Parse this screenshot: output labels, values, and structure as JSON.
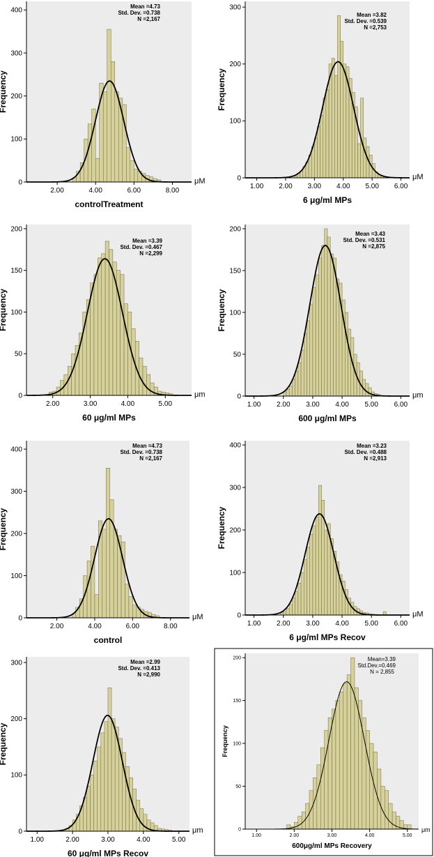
{
  "figure": {
    "style": {
      "bar_fill": "#d6d09b",
      "bar_stroke": "#6f6a40",
      "plot_bg": "#ececec",
      "curve": "#000000",
      "axis": "#000000"
    }
  },
  "chart_data": [
    {
      "type": "bar",
      "title": "controlTreatment",
      "xlabel": "controlTreatment",
      "ylabel": "Frequency",
      "unit": "μM",
      "xlim": [
        0.4,
        9.0
      ],
      "ylim": [
        0,
        420
      ],
      "x_ticks": [
        "2.00",
        "4.00",
        "6.00",
        "8.00"
      ],
      "x_tick_values": [
        2,
        4,
        6,
        8
      ],
      "y_ticks": [
        "0",
        "100",
        "200",
        "300",
        "400"
      ],
      "y_tick_values": [
        0,
        100,
        200,
        300,
        400
      ],
      "stats": {
        "mean_label": "Mean =4.73",
        "sd_label": "Std. Dev. =0.738",
        "n_label": "N =2,167"
      },
      "bin_width": 0.2,
      "bins_start": [
        2.8,
        3.0,
        3.2,
        3.4,
        3.6,
        3.8,
        4.0,
        4.2,
        4.4,
        4.6,
        4.8,
        5.0,
        5.2,
        5.4,
        5.6,
        5.8,
        6.0,
        6.2,
        6.4,
        6.6,
        6.8,
        7.0,
        7.2
      ],
      "values": [
        10,
        25,
        45,
        100,
        135,
        170,
        55,
        230,
        210,
        355,
        280,
        210,
        195,
        180,
        80,
        50,
        30,
        25,
        20,
        15,
        12,
        8,
        5
      ],
      "curve": {
        "mean": 4.73,
        "sd": 0.738,
        "peak": 235
      }
    },
    {
      "type": "bar",
      "title": "6 μg/ml MPs",
      "xlabel": "6 μg/ml MPs",
      "ylabel": "Frequency",
      "unit": "μM",
      "xlim": [
        0.6,
        6.3
      ],
      "ylim": [
        0,
        310
      ],
      "x_ticks": [
        "1.00",
        "2.00",
        "3.00",
        "4.00",
        "5.00",
        "6.00"
      ],
      "x_tick_values": [
        1,
        2,
        3,
        4,
        5,
        6
      ],
      "y_ticks": [
        "0",
        "100",
        "200",
        "300"
      ],
      "y_tick_values": [
        0,
        100,
        200,
        300
      ],
      "stats": {
        "mean_label": "Mean =3.82",
        "sd_label": "Std. Dev. =0.539",
        "n_label": "N =2,753"
      },
      "bin_width": 0.1,
      "bins_start": [
        2.3,
        2.4,
        2.5,
        2.6,
        2.7,
        2.8,
        2.9,
        3.0,
        3.1,
        3.2,
        3.3,
        3.4,
        3.5,
        3.6,
        3.7,
        3.8,
        3.9,
        4.0,
        4.1,
        4.2,
        4.3,
        4.4,
        4.5,
        4.6,
        4.7,
        4.8,
        4.9,
        5.0,
        5.1,
        5.2,
        5.3
      ],
      "values": [
        3,
        8,
        12,
        20,
        28,
        40,
        55,
        70,
        90,
        110,
        140,
        155,
        200,
        210,
        180,
        285,
        240,
        200,
        195,
        175,
        150,
        125,
        60,
        140,
        70,
        55,
        40,
        25,
        10,
        5,
        3
      ],
      "curve": {
        "mean": 3.82,
        "sd": 0.539,
        "peak": 204
      }
    },
    {
      "type": "bar",
      "title": "60 μg/ml MPs",
      "xlabel": "60 μg/ml MPs",
      "ylabel": "Frequency",
      "unit": "μm",
      "xlim": [
        1.3,
        5.7
      ],
      "ylim": [
        0,
        205
      ],
      "x_ticks": [
        "2.00",
        "3.00",
        "4.00",
        "5.00"
      ],
      "x_tick_values": [
        2,
        3,
        4,
        5
      ],
      "y_ticks": [
        "0",
        "50",
        "100",
        "150",
        "200"
      ],
      "y_tick_values": [
        0,
        50,
        100,
        150,
        200
      ],
      "stats": {
        "mean_label": "Mean =3.39",
        "sd_label": "Std. Dev. =0.467",
        "n_label": "N =2,299"
      },
      "bin_width": 0.1,
      "bins_start": [
        1.9,
        2.0,
        2.1,
        2.2,
        2.3,
        2.4,
        2.5,
        2.6,
        2.7,
        2.8,
        2.9,
        3.0,
        3.1,
        3.2,
        3.3,
        3.4,
        3.5,
        3.6,
        3.7,
        3.8,
        3.9,
        4.0,
        4.1,
        4.2,
        4.3,
        4.4,
        4.5,
        4.6,
        4.7,
        4.8,
        4.9,
        5.0,
        5.1
      ],
      "values": [
        4,
        5,
        10,
        18,
        25,
        35,
        50,
        60,
        75,
        100,
        115,
        135,
        145,
        165,
        170,
        185,
        175,
        160,
        150,
        145,
        110,
        100,
        80,
        65,
        45,
        35,
        25,
        15,
        10,
        5,
        4,
        3,
        2
      ],
      "curve": {
        "mean": 3.39,
        "sd": 0.467,
        "peak": 164
      }
    },
    {
      "type": "bar",
      "title": "600 μg/ml MPs",
      "xlabel": "600 μg/ml MPs",
      "ylabel": "Frequency",
      "unit": "μm",
      "xlim": [
        0.7,
        6.3
      ],
      "ylim": [
        0,
        205
      ],
      "x_ticks": [
        "1.00",
        "2.00",
        "3.00",
        "4.00",
        "5.00",
        "6.00"
      ],
      "x_tick_values": [
        1,
        2,
        3,
        4,
        5,
        6
      ],
      "y_ticks": [
        "0",
        "50",
        "100",
        "150",
        "200"
      ],
      "y_tick_values": [
        0,
        50,
        100,
        150,
        200
      ],
      "stats": {
        "mean_label": "Mean =3.43",
        "sd_label": "Std. Dev. =0.531",
        "n_label": "N =2,875"
      },
      "bin_width": 0.1,
      "bins_start": [
        2.0,
        2.1,
        2.2,
        2.3,
        2.4,
        2.5,
        2.6,
        2.7,
        2.8,
        2.9,
        3.0,
        3.1,
        3.2,
        3.3,
        3.4,
        3.5,
        3.6,
        3.7,
        3.8,
        3.9,
        4.0,
        4.1,
        4.2,
        4.3,
        4.4,
        4.5,
        4.6,
        4.7,
        4.8,
        4.9,
        5.0,
        5.1,
        5.2
      ],
      "values": [
        5,
        8,
        12,
        20,
        30,
        40,
        55,
        75,
        90,
        110,
        130,
        145,
        165,
        180,
        200,
        190,
        170,
        165,
        140,
        135,
        115,
        100,
        80,
        70,
        50,
        40,
        30,
        20,
        15,
        10,
        5,
        3,
        2
      ],
      "curve": {
        "mean": 3.43,
        "sd": 0.531,
        "peak": 180
      }
    },
    {
      "type": "bar",
      "title": "control",
      "xlabel": "control",
      "ylabel": "Frequency",
      "unit": "μM",
      "xlim": [
        0.4,
        9.0
      ],
      "ylim": [
        0,
        420
      ],
      "x_ticks": [
        "2.00",
        "4.00",
        "6.00",
        "8.00"
      ],
      "x_tick_values": [
        2,
        4,
        6,
        8
      ],
      "y_ticks": [
        "0",
        "100",
        "200",
        "300",
        "400"
      ],
      "y_tick_values": [
        0,
        100,
        200,
        300,
        400
      ],
      "stats": {
        "mean_label": "Mean =4.73",
        "sd_label": "Std. Dev. =0.738",
        "n_label": "N =2,167"
      },
      "bin_width": 0.2,
      "bins_start": [
        2.8,
        3.0,
        3.2,
        3.4,
        3.6,
        3.8,
        4.0,
        4.2,
        4.4,
        4.6,
        4.8,
        5.0,
        5.2,
        5.4,
        5.6,
        5.8,
        6.0,
        6.2,
        6.4,
        6.6,
        6.8,
        7.0,
        7.2
      ],
      "values": [
        10,
        25,
        45,
        100,
        135,
        170,
        55,
        230,
        210,
        355,
        280,
        210,
        195,
        180,
        80,
        50,
        30,
        25,
        20,
        15,
        12,
        8,
        5
      ],
      "curve": {
        "mean": 4.73,
        "sd": 0.738,
        "peak": 235
      }
    },
    {
      "type": "bar",
      "title": "6 μg/ml MPs Recov",
      "xlabel": "6 μg/ml MPs Recov",
      "ylabel": "Frequency",
      "unit": "μM",
      "xlim": [
        0.7,
        6.3
      ],
      "ylim": [
        0,
        410
      ],
      "x_ticks": [
        "1.00",
        "2.00",
        "3.00",
        "4.00",
        "5.00",
        "6.00"
      ],
      "x_tick_values": [
        1,
        2,
        3,
        4,
        5,
        6
      ],
      "y_ticks": [
        "0",
        "100",
        "200",
        "300",
        "400"
      ],
      "y_tick_values": [
        0,
        100,
        200,
        300,
        400
      ],
      "stats": {
        "mean_label": "Mean =3.23",
        "sd_label": "Std. Dev. =0.488",
        "n_label": "N =2,913"
      },
      "bin_width": 0.1,
      "bins_start": [
        1.9,
        2.0,
        2.1,
        2.2,
        2.3,
        2.4,
        2.5,
        2.6,
        2.7,
        2.8,
        2.9,
        3.0,
        3.1,
        3.2,
        3.3,
        3.4,
        3.5,
        3.6,
        3.7,
        3.8,
        3.9,
        4.0,
        4.1,
        4.2,
        4.3,
        4.4,
        4.5,
        4.6,
        4.7,
        4.8,
        4.9,
        5.0,
        5.4
      ],
      "values": [
        5,
        8,
        15,
        25,
        40,
        55,
        75,
        100,
        130,
        160,
        190,
        210,
        230,
        305,
        270,
        200,
        215,
        180,
        150,
        125,
        95,
        80,
        60,
        40,
        30,
        20,
        15,
        10,
        6,
        5,
        3,
        2,
        8
      ],
      "curve": {
        "mean": 3.23,
        "sd": 0.488,
        "peak": 238
      }
    },
    {
      "type": "bar",
      "title": "60 μg/ml MPs Recov",
      "xlabel": "60 μg/ml MPs Recov",
      "ylabel": "Frequency",
      "unit": "μm",
      "xlim": [
        0.7,
        5.3
      ],
      "ylim": [
        0,
        310
      ],
      "x_ticks": [
        "1.00",
        "2.00",
        "3.00",
        "4.00",
        "5.00"
      ],
      "x_tick_values": [
        1,
        2,
        3,
        4,
        5
      ],
      "y_ticks": [
        "0",
        "100",
        "200",
        "300"
      ],
      "y_tick_values": [
        0,
        100,
        200,
        300
      ],
      "stats": {
        "mean_label": "Mean =2.99",
        "sd_label": "Std. Dev. =0.413",
        "n_label": "N =2,990"
      },
      "bin_width": 0.1,
      "bins_start": [
        1.8,
        1.9,
        2.0,
        2.1,
        2.2,
        2.3,
        2.4,
        2.5,
        2.6,
        2.7,
        2.8,
        2.9,
        3.0,
        3.1,
        3.2,
        3.3,
        3.4,
        3.5,
        3.6,
        3.7,
        3.8,
        3.9,
        4.0,
        4.1,
        4.2,
        4.3,
        4.4,
        4.5,
        4.6,
        4.7
      ],
      "values": [
        5,
        10,
        20,
        30,
        45,
        60,
        80,
        100,
        125,
        150,
        175,
        195,
        255,
        200,
        185,
        165,
        140,
        115,
        95,
        75,
        55,
        40,
        30,
        20,
        15,
        10,
        5,
        4,
        3,
        2
      ],
      "curve": {
        "mean": 2.99,
        "sd": 0.413,
        "peak": 206
      }
    },
    {
      "type": "bar",
      "title": "600μg/ml MPs Recovery",
      "xlabel": "600μg/ml MPs Recovery",
      "ylabel": "Frequency",
      "unit": "μm",
      "xlim": [
        0.7,
        5.3
      ],
      "ylim": [
        0,
        205
      ],
      "x_ticks": [
        "1.00",
        "2.00",
        "3.00",
        "4.00",
        "5.00"
      ],
      "x_tick_values": [
        1,
        2,
        3,
        4,
        5
      ],
      "y_ticks": [
        "0",
        "50",
        "100",
        "150",
        "200"
      ],
      "y_tick_values": [
        0,
        50,
        100,
        150,
        200
      ],
      "stats": {
        "mean_label": "Mean=3.39",
        "sd_label": "Std.Dev.=0.469",
        "n_label": "N = 2,855"
      },
      "bin_width": 0.1,
      "bins_start": [
        1.8,
        1.9,
        2.0,
        2.1,
        2.2,
        2.3,
        2.4,
        2.5,
        2.6,
        2.7,
        2.8,
        2.9,
        3.0,
        3.1,
        3.2,
        3.3,
        3.4,
        3.5,
        3.6,
        3.7,
        3.8,
        3.9,
        4.0,
        4.1,
        4.2,
        4.3,
        4.4,
        4.5,
        4.6,
        4.7,
        4.8,
        4.9,
        5.0
      ],
      "values": [
        5,
        3,
        8,
        15,
        20,
        30,
        45,
        60,
        75,
        95,
        115,
        130,
        140,
        150,
        160,
        170,
        180,
        200,
        165,
        150,
        130,
        115,
        100,
        90,
        70,
        50,
        45,
        30,
        20,
        15,
        10,
        5,
        5
      ],
      "curve": {
        "mean": 3.39,
        "sd": 0.469,
        "peak": 172
      }
    }
  ]
}
